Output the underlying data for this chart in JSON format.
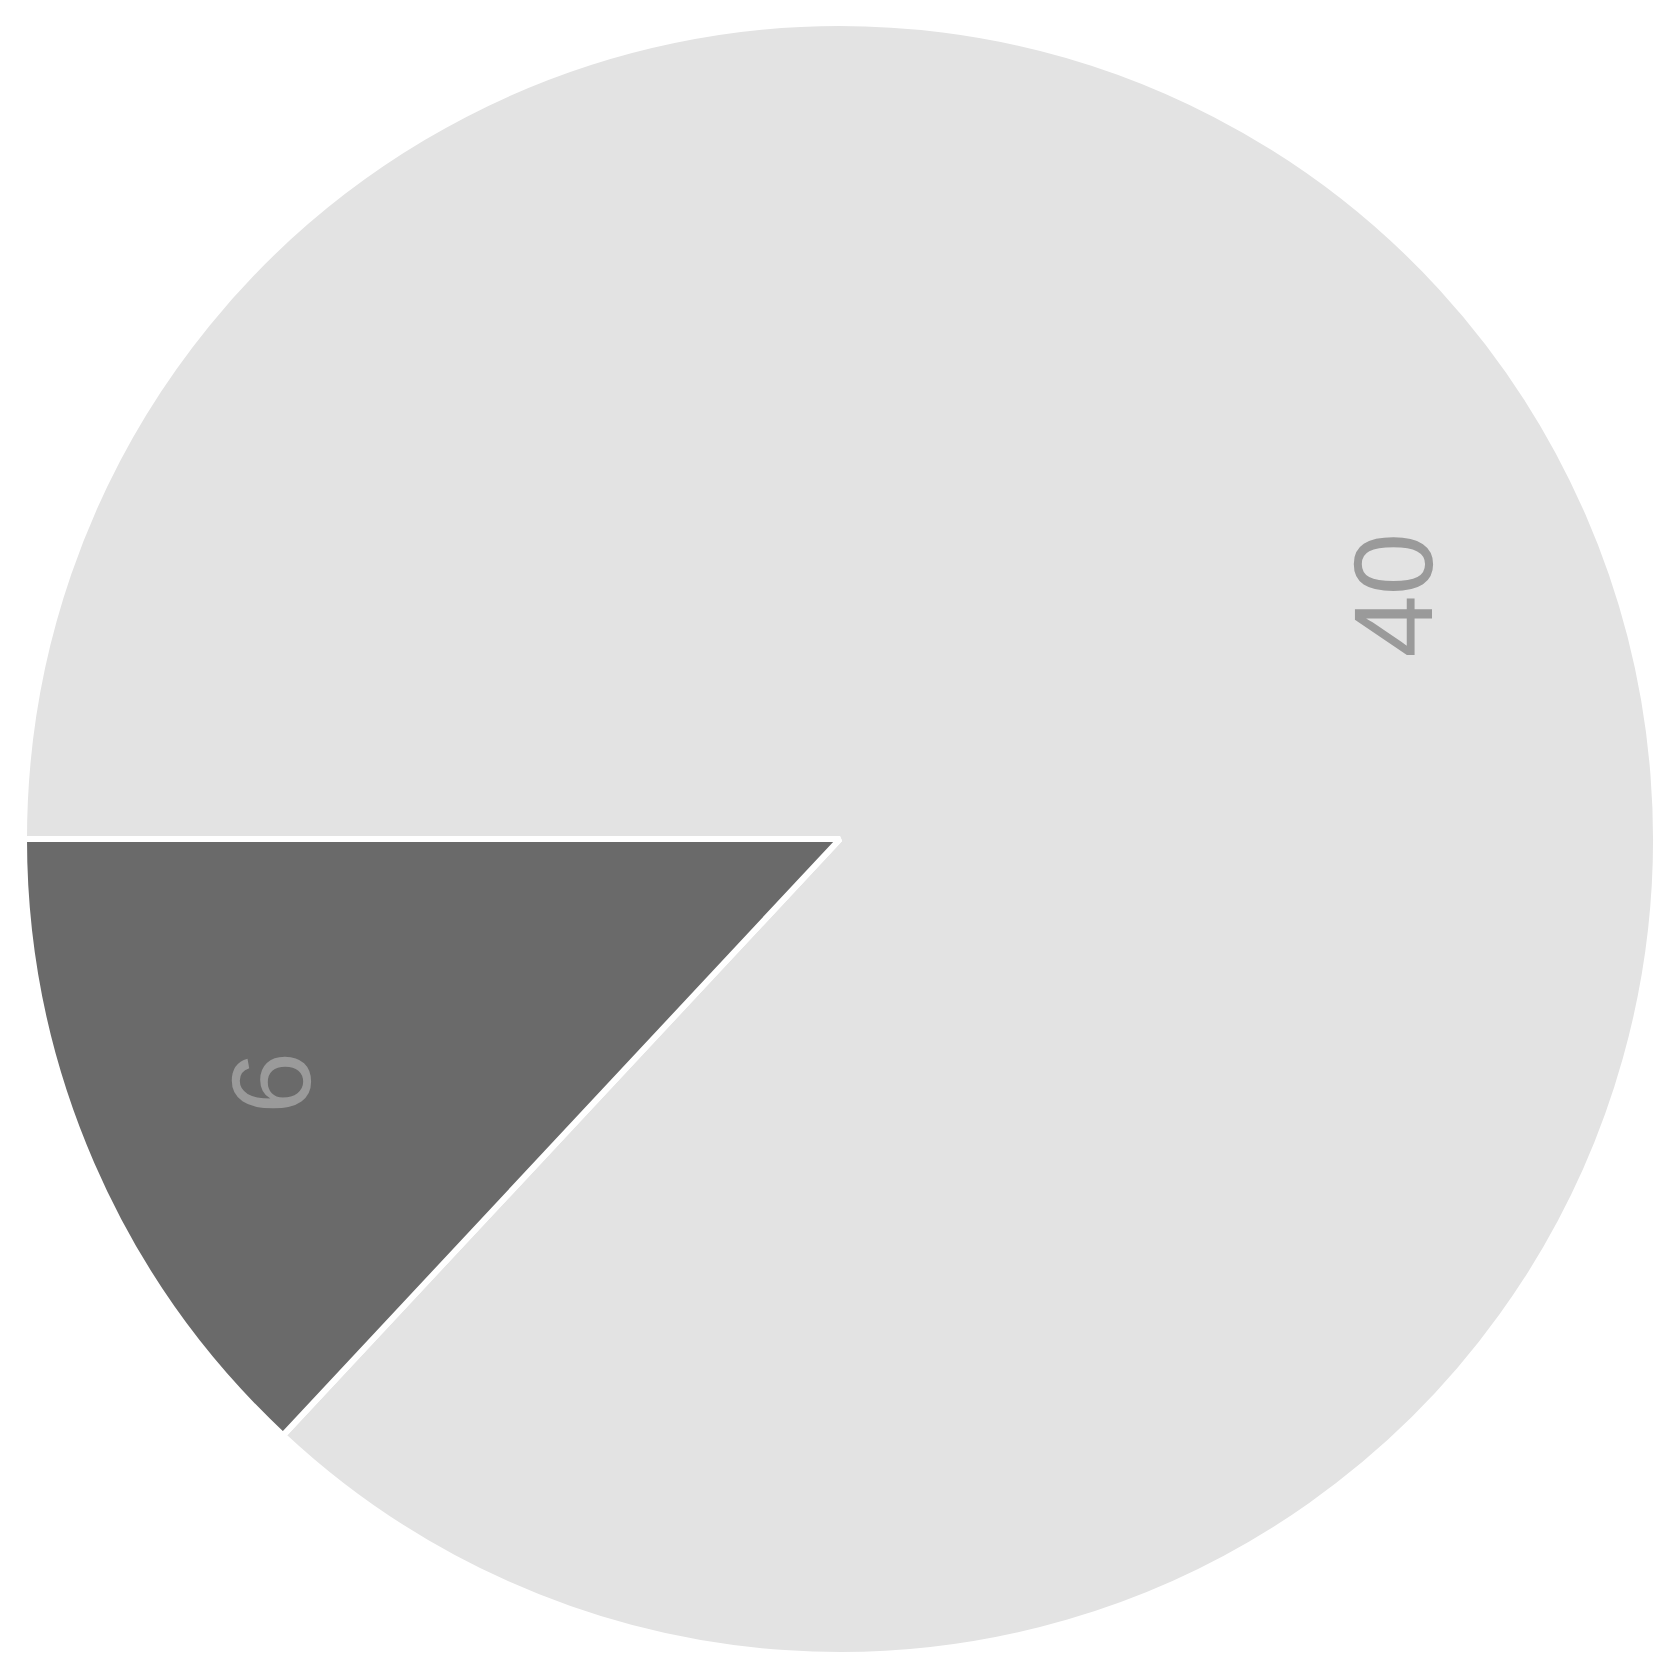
{
  "chart_data": {
    "type": "pie",
    "categories": [
      null,
      null
    ],
    "values": [
      40,
      6
    ],
    "colors": [
      "#e3e3e3",
      "#6a6a6a"
    ],
    "data_labels": true,
    "legend": false
  }
}
